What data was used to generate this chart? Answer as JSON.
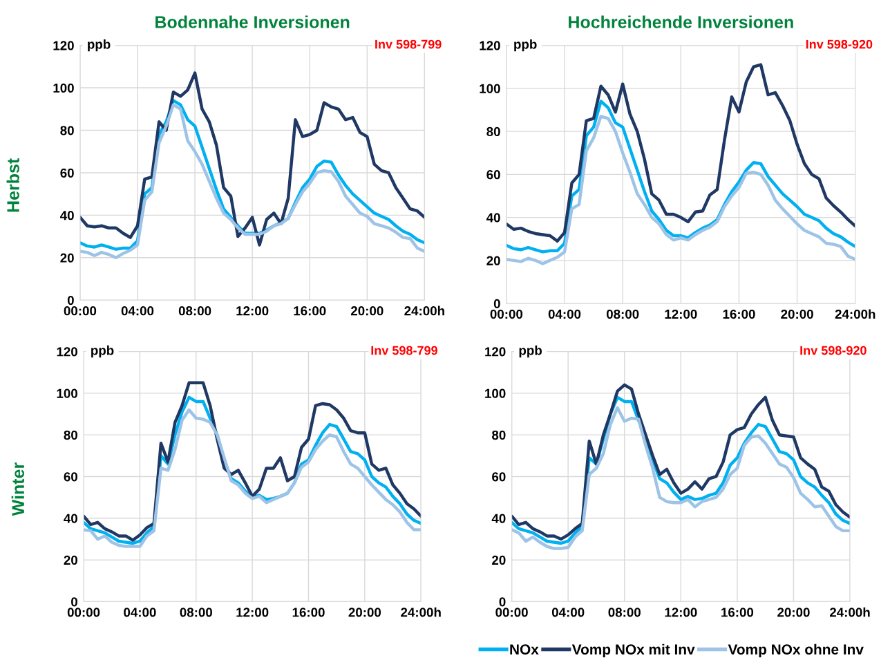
{
  "chart_data": [
    {
      "type": "line",
      "title": "Bodennahe Inversionen",
      "ylabel": "ppb",
      "annotations": [
        "Inv 598-799",
        "Herbst"
      ],
      "x": [
        0,
        0.5,
        1,
        1.5,
        2,
        2.5,
        3,
        3.5,
        4,
        4.5,
        5,
        5.5,
        6,
        6.5,
        7,
        7.5,
        8,
        8.5,
        9,
        9.5,
        10,
        10.5,
        11,
        11.5,
        12,
        12.5,
        13,
        13.5,
        14,
        14.5,
        15,
        15.5,
        16,
        16.5,
        17,
        17.5,
        18,
        18.5,
        19,
        19.5,
        20,
        20.5,
        21,
        21.5,
        22,
        22.5,
        23,
        23.5,
        24
      ],
      "xlim": [
        0,
        24
      ],
      "xticks": [
        {
          "value": 0,
          "label": "00:00"
        },
        {
          "value": 4,
          "label": "04:00"
        },
        {
          "value": 8,
          "label": "08:00"
        },
        {
          "value": 12,
          "label": "12:00"
        },
        {
          "value": 16,
          "label": "16:00"
        },
        {
          "value": 20,
          "label": "20:00"
        },
        {
          "value": 24,
          "label": "24:00h"
        }
      ],
      "ylim": [
        0,
        120
      ],
      "yticks": [
        0,
        20,
        40,
        60,
        80,
        100,
        120
      ],
      "grid": true,
      "marker": "none",
      "line_style": "solid",
      "legend": "bottom right",
      "series": [
        {
          "name": "NOx",
          "color": "#00b0f0",
          "values": [
            27,
            25.5,
            25,
            26,
            25,
            24,
            24.5,
            24.5,
            28,
            50,
            53,
            78,
            84,
            94,
            92,
            85,
            82,
            72,
            62,
            52,
            43,
            39,
            35,
            31.5,
            31.5,
            31.5,
            33,
            35,
            36.5,
            38.5,
            46,
            53,
            57,
            63,
            65.5,
            65,
            59,
            54,
            50,
            47,
            44,
            41,
            39.5,
            38,
            35,
            32.5,
            31,
            28.5,
            27
          ]
        },
        {
          "name": "Vomp NOx mit Inv",
          "color": "#1f3864",
          "values": [
            39,
            35,
            34.5,
            35,
            34,
            34,
            31.5,
            29.5,
            35,
            57,
            58,
            84,
            80,
            98,
            96,
            99,
            107,
            90,
            84,
            73,
            53,
            49,
            30,
            34,
            39,
            26,
            38,
            41,
            36,
            48,
            85,
            77,
            78,
            80,
            93,
            91,
            90,
            85,
            86,
            79,
            77,
            64,
            61,
            60,
            53,
            48,
            43,
            42,
            39
          ]
        },
        {
          "name": "Vomp NOx ohne Inv",
          "color": "#9dc3e6",
          "values": [
            23,
            22.5,
            21,
            22.5,
            21.5,
            20,
            22,
            23.5,
            26,
            47,
            51,
            74,
            82,
            92,
            90,
            75,
            70,
            64,
            56,
            48,
            41,
            38,
            34,
            31,
            31,
            31,
            32.5,
            35,
            36,
            38.5,
            45,
            51,
            55,
            60,
            61,
            60.5,
            56,
            49,
            45,
            41,
            39.5,
            36,
            35,
            34,
            32,
            29.5,
            29,
            24.5,
            23
          ]
        }
      ]
    },
    {
      "type": "line",
      "title": "Hochreichende Inversionen",
      "ylabel": "ppb",
      "annotations": [
        "Inv 598-920"
      ],
      "x": [
        0,
        0.5,
        1,
        1.5,
        2,
        2.5,
        3,
        3.5,
        4,
        4.5,
        5,
        5.5,
        6,
        6.5,
        7,
        7.5,
        8,
        8.5,
        9,
        9.5,
        10,
        10.5,
        11,
        11.5,
        12,
        12.5,
        13,
        13.5,
        14,
        14.5,
        15,
        15.5,
        16,
        16.5,
        17,
        17.5,
        18,
        18.5,
        19,
        19.5,
        20,
        20.5,
        21,
        21.5,
        22,
        22.5,
        23,
        23.5,
        24
      ],
      "xlim": [
        0,
        24
      ],
      "xticks": [
        {
          "value": 0,
          "label": "00:00"
        },
        {
          "value": 4,
          "label": "04:00"
        },
        {
          "value": 8,
          "label": "08:00"
        },
        {
          "value": 12,
          "label": "12:00"
        },
        {
          "value": 16,
          "label": "16:00"
        },
        {
          "value": 20,
          "label": "20:00"
        },
        {
          "value": 24,
          "label": "24:00h"
        }
      ],
      "ylim": [
        0,
        120
      ],
      "yticks": [
        0,
        20,
        40,
        60,
        80,
        100,
        120
      ],
      "grid": true,
      "marker": "none",
      "line_style": "solid",
      "series": [
        {
          "color": "#00b0f0",
          "values": [
            27,
            25.5,
            25,
            26,
            25,
            24,
            24.5,
            24.5,
            28,
            50,
            53,
            78,
            82,
            94,
            91,
            84,
            82,
            72,
            62,
            52,
            43,
            39,
            34,
            31.5,
            31.5,
            30.5,
            33,
            35,
            36.5,
            39,
            46,
            52,
            56.5,
            62,
            65.5,
            65,
            59,
            55,
            51,
            48,
            45,
            41.5,
            40,
            38.5,
            35,
            32.5,
            31,
            28.5,
            26.5
          ]
        },
        {
          "color": "#1f3864",
          "values": [
            37,
            34.5,
            35,
            33.5,
            32.5,
            32,
            31.5,
            29,
            33,
            56,
            60,
            85,
            86,
            101,
            97,
            89,
            102,
            88,
            80,
            67,
            51,
            48,
            41.5,
            41.5,
            40,
            38,
            42.5,
            43,
            50.5,
            53,
            76,
            96,
            89,
            103,
            110,
            111,
            97,
            98,
            92,
            85,
            74,
            65,
            60,
            58,
            49,
            45.5,
            42.5,
            39,
            36
          ]
        },
        {
          "color": "#9dc3e6",
          "values": [
            20.5,
            20,
            19.5,
            21,
            20,
            18.5,
            20,
            21.5,
            24,
            44,
            46,
            71,
            77,
            87,
            86,
            80,
            70,
            61,
            51,
            46,
            40,
            37,
            32,
            29.5,
            30.5,
            29.5,
            32,
            34,
            35.5,
            38,
            45,
            50,
            54,
            60.5,
            61,
            60,
            55,
            48,
            44,
            40.5,
            37,
            34,
            32.5,
            31,
            28,
            27.5,
            26.5,
            22,
            20.5
          ]
        }
      ]
    },
    {
      "type": "line",
      "ylabel": "ppb",
      "annotations": [
        "Inv 598-799",
        "Winter"
      ],
      "x": [
        0,
        0.5,
        1,
        1.5,
        2,
        2.5,
        3,
        3.5,
        4,
        4.5,
        5,
        5.5,
        6,
        6.5,
        7,
        7.5,
        8,
        8.5,
        9,
        9.5,
        10,
        10.5,
        11,
        11.5,
        12,
        12.5,
        13,
        13.5,
        14,
        14.5,
        15,
        15.5,
        16,
        16.5,
        17,
        17.5,
        18,
        18.5,
        19,
        19.5,
        20,
        20.5,
        21,
        21.5,
        22,
        22.5,
        23,
        23.5,
        24
      ],
      "xlim": [
        0,
        24
      ],
      "xticks": [
        {
          "value": 0,
          "label": "00:00"
        },
        {
          "value": 4,
          "label": "04:00"
        },
        {
          "value": 8,
          "label": "08:00"
        },
        {
          "value": 12,
          "label": "12:00"
        },
        {
          "value": 16,
          "label": "16:00"
        },
        {
          "value": 20,
          "label": "20:00"
        },
        {
          "value": 24,
          "label": "24:00h"
        }
      ],
      "ylim": [
        0,
        120
      ],
      "yticks": [
        0,
        20,
        40,
        60,
        80,
        100,
        120
      ],
      "grid": true,
      "marker": "none",
      "line_style": "solid",
      "series": [
        {
          "color": "#00b0f0",
          "values": [
            38,
            35,
            34,
            33,
            31,
            29,
            28.5,
            28,
            29,
            33,
            36,
            70,
            66,
            80,
            91,
            98,
            96,
            96,
            88,
            80,
            68,
            59,
            57,
            53,
            50,
            51,
            49,
            49.5,
            50.5,
            52,
            57,
            66,
            68,
            75,
            81,
            85,
            84,
            78,
            72,
            71,
            68,
            60,
            57,
            55,
            50.5,
            47,
            42,
            39,
            37.5
          ]
        },
        {
          "color": "#1f3864",
          "values": [
            41,
            37,
            38,
            35,
            33.5,
            31.5,
            31.5,
            29.5,
            32,
            35.5,
            37.5,
            76,
            67,
            86,
            94,
            105,
            105,
            105,
            94,
            78,
            64,
            61,
            63,
            57,
            50.5,
            54,
            64,
            64,
            69,
            58,
            60,
            74,
            78,
            94,
            95,
            94.5,
            92,
            88,
            82,
            81,
            81,
            66,
            63,
            64,
            56,
            52,
            47,
            44.5,
            41
          ]
        },
        {
          "color": "#9dc3e6",
          "values": [
            34.5,
            34,
            30,
            31.5,
            28.5,
            27,
            26.5,
            26.5,
            26.5,
            31.5,
            34,
            64,
            63,
            73,
            87,
            92,
            88,
            87.5,
            86,
            80,
            69,
            58,
            56,
            52,
            49.5,
            50.5,
            47.5,
            49,
            50.5,
            52,
            57,
            64.5,
            67,
            73,
            77,
            80,
            79,
            72,
            66,
            64,
            60,
            56,
            52.5,
            49,
            46.5,
            43,
            38,
            34.5,
            34.5
          ]
        }
      ]
    },
    {
      "type": "line",
      "ylabel": "ppb",
      "annotations": [
        "Inv 598-920"
      ],
      "x": [
        0,
        0.5,
        1,
        1.5,
        2,
        2.5,
        3,
        3.5,
        4,
        4.5,
        5,
        5.5,
        6,
        6.5,
        7,
        7.5,
        8,
        8.5,
        9,
        9.5,
        10,
        10.5,
        11,
        11.5,
        12,
        12.5,
        13,
        13.5,
        14,
        14.5,
        15,
        15.5,
        16,
        16.5,
        17,
        17.5,
        18,
        18.5,
        19,
        19.5,
        20,
        20.5,
        21,
        21.5,
        22,
        22.5,
        23,
        23.5,
        24
      ],
      "xlim": [
        0,
        24
      ],
      "xticks": [
        {
          "value": 0,
          "label": "00:00"
        },
        {
          "value": 4,
          "label": "04:00"
        },
        {
          "value": 8,
          "label": "08:00"
        },
        {
          "value": 12,
          "label": "12:00"
        },
        {
          "value": 16,
          "label": "16:00"
        },
        {
          "value": 20,
          "label": "20:00"
        },
        {
          "value": 24,
          "label": "24:00h"
        }
      ],
      "ylim": [
        0,
        120
      ],
      "yticks": [
        0,
        20,
        40,
        60,
        80,
        100,
        120
      ],
      "grid": true,
      "marker": "none",
      "line_style": "solid",
      "series": [
        {
          "color": "#00b0f0",
          "values": [
            38,
            35,
            34,
            33,
            31,
            29,
            28.5,
            28,
            29,
            33,
            36,
            69,
            66,
            78,
            90,
            98,
            96,
            96,
            87,
            79,
            68,
            59,
            57,
            52.5,
            49,
            50.5,
            49,
            49.5,
            51,
            52,
            57,
            65.5,
            69,
            76,
            81,
            85,
            84,
            78,
            72,
            71,
            68,
            60,
            57,
            55,
            51,
            47.5,
            42,
            39,
            37.5
          ]
        },
        {
          "color": "#1f3864",
          "values": [
            41,
            37,
            38,
            35,
            33.5,
            31.5,
            31.5,
            30,
            32,
            35,
            37.5,
            77,
            66,
            80,
            90,
            101,
            104,
            102,
            90,
            80,
            70,
            61,
            63.5,
            57,
            52,
            54,
            57.5,
            54,
            59,
            60,
            67,
            80,
            82.5,
            83.5,
            90,
            94.5,
            98,
            87,
            80,
            79.5,
            79,
            69,
            66,
            63.5,
            55,
            53,
            46.5,
            43,
            40.5
          ]
        },
        {
          "color": "#9dc3e6",
          "values": [
            34.5,
            33,
            29,
            31,
            28.5,
            26.5,
            25.5,
            25.5,
            26,
            31,
            34,
            61,
            64,
            71,
            85,
            93,
            86.5,
            88,
            87.5,
            75,
            64,
            50,
            48,
            47.5,
            47.5,
            49,
            45.5,
            48,
            49,
            50,
            54,
            61,
            64,
            75,
            79,
            79.5,
            76,
            71,
            66,
            64.5,
            59.5,
            52,
            49,
            45.5,
            46,
            41,
            36,
            34,
            34
          ]
        }
      ]
    }
  ]
}
